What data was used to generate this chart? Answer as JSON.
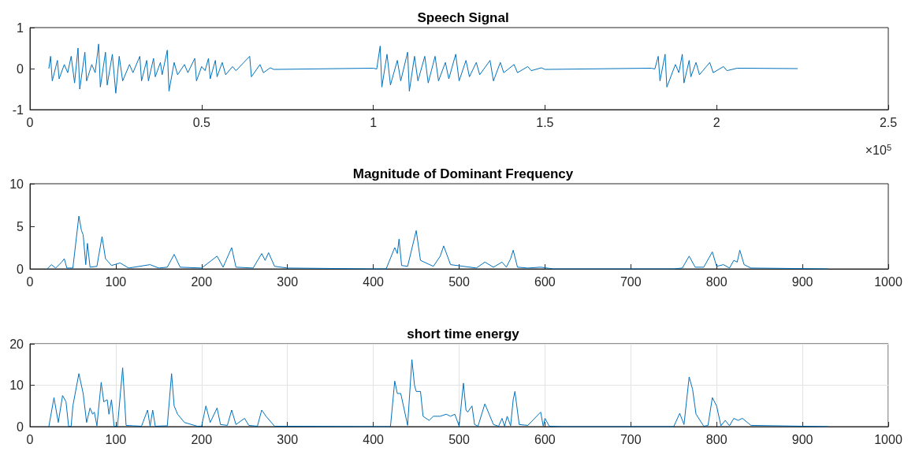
{
  "chart_data": [
    {
      "type": "line",
      "title": "Speech Signal",
      "color": "#0072bd",
      "grid": false,
      "xlim": [
        0,
        2.5
      ],
      "ylim": [
        -1,
        1
      ],
      "yticks": [
        -1,
        0,
        1
      ],
      "xticks": [
        0,
        0.5,
        1,
        1.5,
        2,
        2.5
      ],
      "annotations": [
        "×10$^{5}$"
      ],
      "x": [
        0.055,
        0.06,
        0.065,
        0.08,
        0.085,
        0.1,
        0.11,
        0.12,
        0.13,
        0.14,
        0.145,
        0.16,
        0.165,
        0.18,
        0.19,
        0.2,
        0.205,
        0.22,
        0.225,
        0.24,
        0.25,
        0.26,
        0.27,
        0.29,
        0.3,
        0.32,
        0.325,
        0.34,
        0.345,
        0.36,
        0.365,
        0.38,
        0.385,
        0.4,
        0.405,
        0.42,
        0.43,
        0.45,
        0.46,
        0.48,
        0.485,
        0.5,
        0.51,
        0.52,
        0.525,
        0.54,
        0.545,
        0.56,
        0.57,
        0.59,
        0.6,
        0.64,
        0.645,
        0.67,
        0.68,
        0.7,
        0.71,
        1,
        1.01,
        1.02,
        1.025,
        1.04,
        1.05,
        1.07,
        1.08,
        1.1,
        1.105,
        1.12,
        1.13,
        1.15,
        1.16,
        1.18,
        1.19,
        1.21,
        1.22,
        1.24,
        1.25,
        1.27,
        1.28,
        1.3,
        1.31,
        1.34,
        1.35,
        1.37,
        1.38,
        1.41,
        1.42,
        1.45,
        1.46,
        1.49,
        1.5,
        1.81,
        1.82,
        1.83,
        1.835,
        1.85,
        1.855,
        1.88,
        1.89,
        1.9,
        1.905,
        1.92,
        1.925,
        1.94,
        1.95,
        1.98,
        1.99,
        2.02,
        2.03,
        2.06,
        2.236
      ],
      "values": [
        0,
        0.3,
        -0.3,
        0.2,
        -0.25,
        0.1,
        -0.1,
        0.3,
        -0.35,
        0.5,
        -0.5,
        0.4,
        -0.3,
        0.1,
        -0.1,
        0.6,
        -0.45,
        0.4,
        -0.4,
        0.35,
        -0.6,
        0.3,
        -0.3,
        0.1,
        -0.1,
        0.3,
        -0.3,
        0.2,
        -0.3,
        0.25,
        -0.2,
        0.15,
        -0.15,
        0.45,
        -0.55,
        0.15,
        -0.15,
        0.1,
        -0.1,
        0.25,
        -0.3,
        0.05,
        -0.05,
        0.25,
        -0.25,
        0.2,
        -0.2,
        0.15,
        -0.15,
        0.05,
        -0.05,
        0.3,
        -0.2,
        0.1,
        -0.1,
        0.02,
        -0.02,
        0.01,
        -0.01,
        0.55,
        -0.45,
        0.35,
        -0.4,
        0.2,
        -0.3,
        0.4,
        -0.55,
        0.3,
        -0.3,
        0.3,
        -0.35,
        0.3,
        -0.3,
        0.15,
        -0.25,
        0.35,
        -0.3,
        0.2,
        -0.2,
        0.15,
        -0.15,
        0.2,
        -0.3,
        0.15,
        -0.1,
        0.1,
        -0.1,
        0.05,
        -0.05,
        0.02,
        -0.02,
        0.01,
        -0.01,
        0.3,
        -0.3,
        0.35,
        -0.45,
        0.1,
        -0.1,
        0.35,
        -0.35,
        0.2,
        -0.2,
        0.15,
        -0.15,
        0.15,
        -0.1,
        0.05,
        -0.05,
        0.01,
        0
      ]
    },
    {
      "type": "line",
      "title": "Magnitude of Dominant Frequency",
      "color": "#0072bd",
      "grid": false,
      "xlim": [
        0,
        1000
      ],
      "xticks": [
        0,
        100,
        200,
        300,
        400,
        500,
        600,
        700,
        800,
        900,
        1000
      ],
      "ylim": [
        0,
        10
      ],
      "yticks": [
        0,
        5,
        10
      ],
      "x": [
        20,
        25,
        30,
        37,
        40,
        43,
        50,
        57,
        60,
        62,
        65,
        67,
        70,
        78,
        84,
        88,
        95,
        105,
        115,
        140,
        150,
        160,
        168,
        175,
        200,
        218,
        225,
        235,
        240,
        260,
        270,
        274,
        278,
        285,
        300,
        400,
        415,
        425,
        428,
        430,
        433,
        440,
        450,
        455,
        470,
        478,
        482,
        490,
        520,
        530,
        540,
        550,
        555,
        560,
        563,
        568,
        580,
        595,
        610,
        750,
        760,
        768,
        775,
        785,
        795,
        800,
        808,
        815,
        820,
        824,
        827,
        832,
        840,
        930
      ],
      "values": [
        0,
        0.5,
        0.1,
        0.8,
        1.2,
        0.1,
        0.1,
        6.2,
        4.5,
        4.0,
        0.5,
        3.0,
        0.2,
        0.3,
        3.8,
        1.2,
        0.4,
        0.7,
        0.1,
        0.5,
        0.1,
        0.2,
        1.7,
        0.2,
        0.1,
        1.5,
        0.2,
        2.5,
        0.2,
        0.1,
        1.8,
        1.0,
        1.9,
        0.3,
        0.1,
        0,
        0,
        2.5,
        1.8,
        3.5,
        0.4,
        0.3,
        4.5,
        1.0,
        0.3,
        1.5,
        2.7,
        0.5,
        0.1,
        0.8,
        0.2,
        0.8,
        0.2,
        1.2,
        2.2,
        0.2,
        0.1,
        0.2,
        0,
        0,
        0.1,
        1.5,
        0.2,
        0.2,
        2.0,
        0.3,
        0.5,
        0.1,
        1.0,
        0.8,
        2.2,
        0.5,
        0.1,
        0
      ]
    },
    {
      "type": "line",
      "title": "short time energy",
      "color": "#0072bd",
      "grid": true,
      "xlim": [
        0,
        1000
      ],
      "xticks": [
        0,
        100,
        200,
        300,
        400,
        500,
        600,
        700,
        800,
        900,
        1000
      ],
      "ylim": [
        0,
        20
      ],
      "yticks": [
        0,
        10,
        20
      ],
      "x": [
        22,
        28,
        33,
        38,
        42,
        45,
        48,
        50,
        57,
        62,
        66,
        70,
        73,
        75,
        78,
        83,
        86,
        90,
        92,
        95,
        98,
        102,
        108,
        112,
        120,
        130,
        137,
        140,
        143,
        146,
        160,
        165,
        168,
        172,
        180,
        195,
        200,
        205,
        210,
        218,
        222,
        230,
        235,
        240,
        250,
        255,
        265,
        270,
        275,
        285,
        300,
        400,
        420,
        425,
        428,
        432,
        440,
        445,
        448,
        450,
        455,
        458,
        465,
        470,
        478,
        485,
        490,
        495,
        500,
        505,
        508,
        510,
        515,
        518,
        522,
        530,
        535,
        540,
        546,
        550,
        553,
        556,
        560,
        563,
        565,
        570,
        580,
        595,
        598,
        600,
        605,
        620,
        750,
        757,
        762,
        768,
        772,
        776,
        785,
        790,
        795,
        800,
        805,
        810,
        815,
        820,
        825,
        830,
        840,
        930
      ],
      "values": [
        0,
        7,
        1,
        7.5,
        6,
        0.1,
        0.1,
        5,
        12.8,
        8,
        1,
        4.5,
        3,
        3.5,
        0.2,
        10.7,
        6,
        6.5,
        3,
        6.5,
        0.1,
        0.1,
        14.2,
        0.3,
        0.2,
        0.1,
        4,
        0.1,
        4,
        0.1,
        0.2,
        12.8,
        5,
        3,
        1,
        0.1,
        0.1,
        5,
        1,
        4.5,
        0.5,
        0.3,
        4,
        0.5,
        2,
        0.3,
        0.1,
        4,
        2.5,
        0.1,
        0.1,
        0,
        0,
        11,
        8,
        8,
        0.3,
        16.2,
        10,
        8.5,
        8.5,
        2.5,
        1.5,
        2.5,
        2.5,
        3,
        2.5,
        3,
        0.1,
        10.5,
        4,
        3.5,
        5,
        0.5,
        0.1,
        5.5,
        3,
        0.5,
        0.1,
        2,
        0.1,
        2.5,
        0.2,
        6.5,
        8.5,
        0.5,
        0.3,
        3.5,
        0.1,
        2,
        0.1,
        0,
        0,
        3.2,
        0.5,
        12,
        9,
        3,
        0.1,
        0.3,
        7,
        5,
        0.2,
        1.5,
        0.2,
        2,
        1.5,
        2,
        0.3,
        0
      ]
    }
  ]
}
